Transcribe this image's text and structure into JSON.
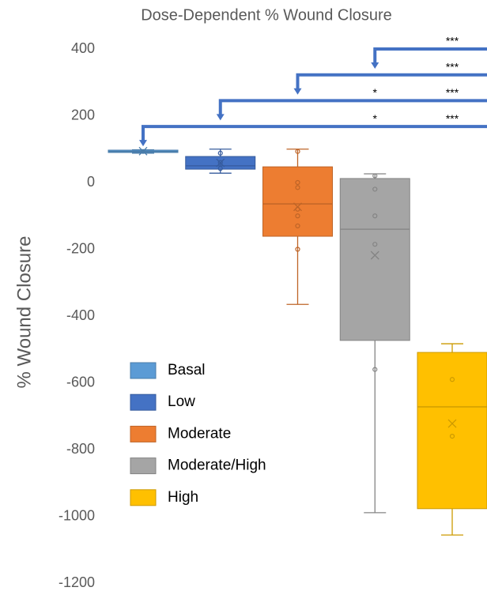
{
  "chart_data": {
    "type": "box",
    "title": "Dose-Dependent % Wound Closure",
    "y_label": "% Wound Closure",
    "ylim": [
      -1200,
      400
    ],
    "yticks": [
      -1200,
      -1000,
      -800,
      -600,
      -400,
      -200,
      0,
      200,
      400
    ],
    "series": [
      {
        "name": "Basal",
        "color": "#5b9bd5",
        "min": 88,
        "q1": 90,
        "median": 93,
        "q3": 97,
        "max": 98,
        "mean": 94,
        "points": [
          93
        ]
      },
      {
        "name": "Low",
        "color": "#4472c4",
        "min": 28,
        "q1": 40,
        "median": 50,
        "q3": 78,
        "max": 100,
        "mean": 59,
        "points": [
          88,
          60,
          42
        ]
      },
      {
        "name": "Moderate",
        "color": "#ed7d31",
        "min": -365,
        "q1": -161,
        "median": -64,
        "q3": 47,
        "max": 100,
        "mean": -73,
        "points": [
          93,
          0,
          -15,
          -80,
          -100,
          -130,
          -200
        ]
      },
      {
        "name": "Moderate/High",
        "color": "#a5a5a5",
        "min": -989,
        "q1": -473,
        "median": -140,
        "q3": 12,
        "max": 26,
        "mean": -218,
        "points": [
          20,
          -20,
          -100,
          -185,
          -560
        ]
      },
      {
        "name": "High",
        "color": "#ffc000",
        "min": -1056,
        "q1": -977,
        "median": -672,
        "q3": -509,
        "max": -483,
        "mean": -722,
        "points": [
          -590,
          -760
        ]
      }
    ],
    "significance": [
      {
        "from": "Moderate/High",
        "to": "High",
        "labels": [
          {
            "at": "High",
            "text": "***"
          }
        ]
      },
      {
        "from": "Moderate",
        "to": "High",
        "labels": [
          {
            "at": "High",
            "text": "***"
          }
        ]
      },
      {
        "from": "Low",
        "to": "High",
        "labels": [
          {
            "at": "Moderate/High",
            "text": "*"
          },
          {
            "at": "High",
            "text": "***"
          }
        ]
      },
      {
        "from": "Basal",
        "to": "High",
        "labels": [
          {
            "at": "Moderate/High",
            "text": "*"
          },
          {
            "at": "High",
            "text": "***"
          }
        ]
      }
    ]
  }
}
